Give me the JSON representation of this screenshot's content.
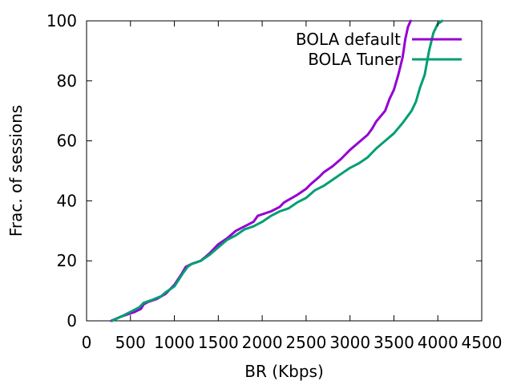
{
  "chart_data": {
    "type": "line",
    "title": "",
    "xlabel": "BR (Kbps)",
    "ylabel": "Frac. of sessions",
    "xlim": [
      0,
      4500
    ],
    "ylim": [
      0,
      100
    ],
    "xticks": [
      0,
      500,
      1000,
      1500,
      2000,
      2500,
      3000,
      3500,
      4000,
      4500
    ],
    "yticks": [
      0,
      20,
      40,
      60,
      80,
      100
    ],
    "grid": false,
    "legend": "top-right",
    "series": [
      {
        "name": "BOLA default",
        "color": "#9400d3",
        "points": [
          [
            280,
            0
          ],
          [
            400,
            1.5
          ],
          [
            550,
            3
          ],
          [
            620,
            4
          ],
          [
            650,
            5.5
          ],
          [
            700,
            6.3
          ],
          [
            800,
            7.3
          ],
          [
            900,
            9
          ],
          [
            1000,
            12
          ],
          [
            1080,
            15.5
          ],
          [
            1130,
            18
          ],
          [
            1200,
            19
          ],
          [
            1300,
            20
          ],
          [
            1400,
            22.5
          ],
          [
            1500,
            25.5
          ],
          [
            1600,
            27.5
          ],
          [
            1700,
            30
          ],
          [
            1800,
            31.5
          ],
          [
            1900,
            33
          ],
          [
            1950,
            35
          ],
          [
            2100,
            36.5
          ],
          [
            2200,
            38
          ],
          [
            2250,
            39.5
          ],
          [
            2400,
            42
          ],
          [
            2500,
            44
          ],
          [
            2550,
            45.5
          ],
          [
            2650,
            48
          ],
          [
            2700,
            49.5
          ],
          [
            2800,
            51.5
          ],
          [
            2900,
            54
          ],
          [
            3000,
            57
          ],
          [
            3100,
            59.5
          ],
          [
            3200,
            62
          ],
          [
            3250,
            64
          ],
          [
            3300,
            66.5
          ],
          [
            3400,
            70
          ],
          [
            3450,
            74
          ],
          [
            3500,
            77
          ],
          [
            3550,
            82
          ],
          [
            3600,
            88
          ],
          [
            3630,
            94
          ],
          [
            3660,
            98
          ],
          [
            3690,
            100
          ]
        ]
      },
      {
        "name": "BOLA Tuner",
        "color": "#009e73",
        "points": [
          [
            290,
            0
          ],
          [
            400,
            1.5
          ],
          [
            500,
            3
          ],
          [
            600,
            4.5
          ],
          [
            650,
            6
          ],
          [
            750,
            7
          ],
          [
            850,
            8.2
          ],
          [
            900,
            9.5
          ],
          [
            1000,
            11.5
          ],
          [
            1100,
            16
          ],
          [
            1150,
            18
          ],
          [
            1200,
            19
          ],
          [
            1300,
            20
          ],
          [
            1400,
            22
          ],
          [
            1500,
            24.5
          ],
          [
            1600,
            27
          ],
          [
            1700,
            28.5
          ],
          [
            1800,
            30.5
          ],
          [
            1900,
            31.5
          ],
          [
            2000,
            33
          ],
          [
            2100,
            35
          ],
          [
            2200,
            36.5
          ],
          [
            2300,
            37.5
          ],
          [
            2400,
            39.5
          ],
          [
            2500,
            41
          ],
          [
            2600,
            43.5
          ],
          [
            2700,
            45
          ],
          [
            2800,
            47
          ],
          [
            2900,
            49
          ],
          [
            3000,
            51
          ],
          [
            3100,
            52.5
          ],
          [
            3200,
            54.5
          ],
          [
            3300,
            57.5
          ],
          [
            3400,
            60
          ],
          [
            3500,
            62.5
          ],
          [
            3600,
            66
          ],
          [
            3700,
            70
          ],
          [
            3750,
            73
          ],
          [
            3800,
            78
          ],
          [
            3850,
            82
          ],
          [
            3900,
            90
          ],
          [
            3950,
            96
          ],
          [
            4000,
            99
          ],
          [
            4050,
            100
          ]
        ]
      }
    ]
  }
}
